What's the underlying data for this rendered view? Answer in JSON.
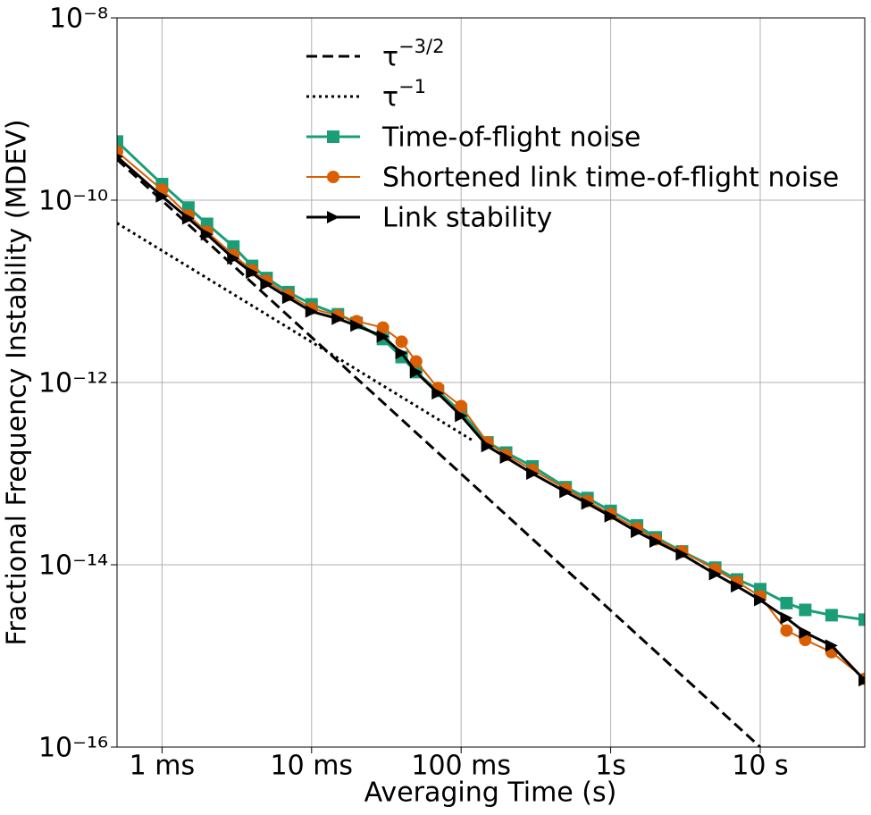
{
  "chart_data": {
    "type": "line",
    "xlabel": "Averaging Time (s)",
    "ylabel": "Fractional Frequency Instability (MDEV)",
    "log_x": true,
    "log_y": true,
    "grid": true,
    "xlim": [
      0.0005,
      50
    ],
    "ylim": [
      1e-16,
      1e-08
    ],
    "xticks": [
      {
        "value": 0.001,
        "label": "1 ms"
      },
      {
        "value": 0.01,
        "label": "10 ms"
      },
      {
        "value": 0.1,
        "label": "100 ms"
      },
      {
        "value": 1,
        "label": "1s"
      },
      {
        "value": 10,
        "label": "10 s"
      }
    ],
    "yticks": [
      {
        "value": 1e-16,
        "label": "10⁻¹⁶"
      },
      {
        "value": 1e-14,
        "label": "10⁻¹⁴"
      },
      {
        "value": 1e-12,
        "label": "10⁻¹²"
      },
      {
        "value": 1e-10,
        "label": "10⁻¹⁰"
      },
      {
        "value": 1e-08,
        "label": "10⁻⁸"
      }
    ],
    "x": [
      0.0005,
      0.001,
      0.0015,
      0.002,
      0.003,
      0.004,
      0.005,
      0.007,
      0.01,
      0.015,
      0.02,
      0.03,
      0.04,
      0.05,
      0.07,
      0.1,
      0.15,
      0.2,
      0.3,
      0.5,
      0.7,
      1,
      1.5,
      2,
      3,
      5,
      7,
      10,
      15,
      20,
      30,
      50
    ],
    "series": [
      {
        "name": "τ−3/2",
        "color": "#000000",
        "style": "dashed",
        "x": [
          0.0005,
          10
        ],
        "values": [
          2.8e-10,
          1e-16
        ]
      },
      {
        "name": "τ−1",
        "color": "#000000",
        "style": "dotted",
        "x": [
          0.0005,
          0.12
        ],
        "values": [
          5.6e-11,
          2.3e-13
        ]
      },
      {
        "name": "Time-of-flight noise",
        "color": "#1b9e77",
        "marker": "square",
        "values": [
          4.4e-10,
          1.5e-10,
          8.3e-11,
          5.5e-11,
          3.1e-11,
          1.9e-11,
          1.4e-11,
          9.8e-12,
          7.2e-12,
          5.6e-12,
          4.5e-12,
          3e-12,
          1.9e-12,
          1.3e-12,
          8.1e-13,
          4.7e-13,
          2.2e-13,
          1.7e-13,
          1.2e-13,
          7.1e-14,
          5.4e-14,
          3.9e-14,
          2.7e-14,
          2e-14,
          1.4e-14,
          9.3e-15,
          6.9e-15,
          5.4e-15,
          3.8e-15,
          3.2e-15,
          2.8e-15,
          2.5e-15
        ]
      },
      {
        "name": "Shortened link time-of-flight noise",
        "color": "#d95f02",
        "marker": "circle",
        "values": [
          3.4e-10,
          1.3e-10,
          6.8e-11,
          4.5e-11,
          2.5e-11,
          1.7e-11,
          1.3e-11,
          9.1e-12,
          6.5e-12,
          5.4e-12,
          4.7e-12,
          4e-12,
          2.8e-12,
          1.7e-12,
          8.7e-13,
          5.5e-13,
          2.2e-13,
          1.6e-13,
          1.1e-13,
          6.8e-14,
          5e-14,
          3.6e-14,
          2.5e-14,
          1.9e-14,
          1.4e-14,
          8.9e-15,
          6.5e-15,
          4.5e-15,
          1.9e-15,
          1.5e-15,
          1.1e-15,
          5.6e-16
        ]
      },
      {
        "name": "Link stability",
        "color": "#000000",
        "marker": "triangle-right",
        "values": [
          3e-10,
          1.1e-10,
          6.3e-11,
          4.2e-11,
          2.3e-11,
          1.6e-11,
          1.2e-11,
          8.5e-12,
          6e-12,
          5e-12,
          4.2e-12,
          3.2e-12,
          2.1e-12,
          1.3e-12,
          7.6e-13,
          4.3e-13,
          2e-13,
          1.5e-13,
          1e-13,
          6.3e-14,
          4.7e-14,
          3.4e-14,
          2.3e-14,
          1.8e-14,
          1.3e-14,
          7.9e-15,
          5.8e-15,
          4.1e-15,
          2.6e-15,
          1.8e-15,
          1.3e-15,
          5.4e-16
        ]
      }
    ]
  }
}
